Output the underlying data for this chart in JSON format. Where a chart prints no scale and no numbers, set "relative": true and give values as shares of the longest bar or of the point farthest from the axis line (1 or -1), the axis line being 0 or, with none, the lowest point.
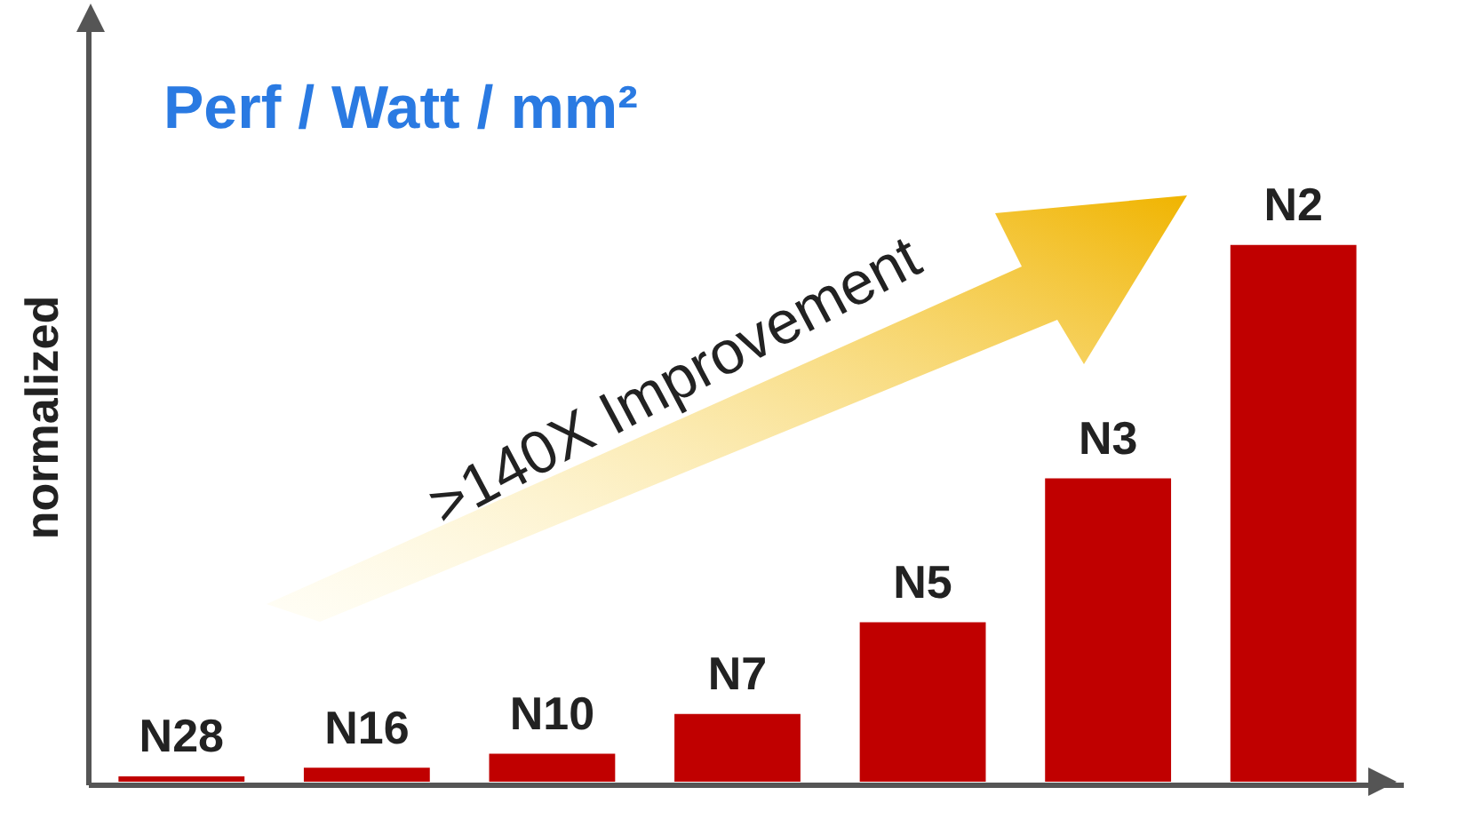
{
  "chart_data": {
    "type": "bar",
    "relative": true,
    "title": "Perf / Watt / mm²",
    "ylabel": "normalized",
    "categories": [
      "N28",
      "N16",
      "N10",
      "N7",
      "N5",
      "N3",
      "N2"
    ],
    "values": [
      0.01,
      0.026,
      0.052,
      0.126,
      0.297,
      0.565,
      1
    ],
    "color": "#c00000",
    "annotations": [
      ">140X Improvement"
    ],
    "legend": false
  }
}
